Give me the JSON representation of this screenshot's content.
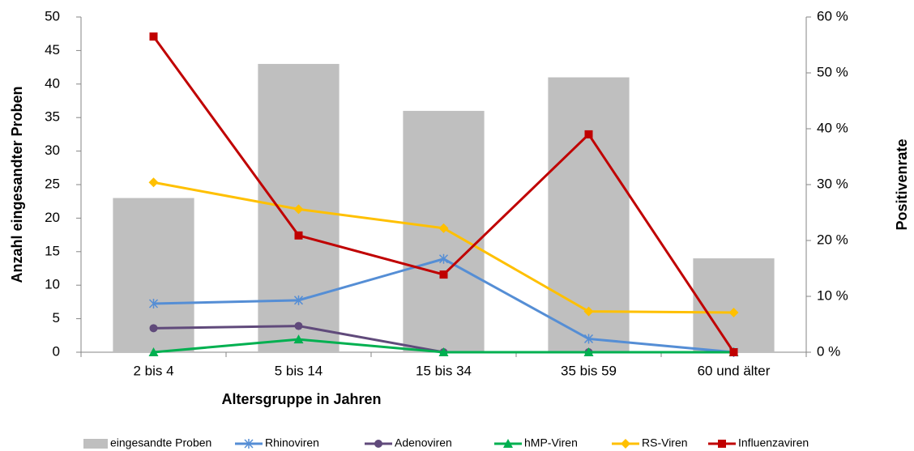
{
  "chart_data": {
    "type": "combo",
    "x_label": "Altersgruppe in Jahren",
    "y_label": "Anzahl eingesandter Proben",
    "y2_label": "Positivenrate",
    "categories": [
      "2 bis 4",
      "5 bis 14",
      "15 bis 34",
      "35 bis 59",
      "60 und älter"
    ],
    "ylim": [
      0,
      50
    ],
    "yticks": [
      0,
      5,
      10,
      15,
      20,
      25,
      30,
      35,
      40,
      45,
      50
    ],
    "y2lim": [
      0,
      60
    ],
    "y2ticks": [
      {
        "value": 0,
        "label": "0 %"
      },
      {
        "value": 10,
        "label": "10 %"
      },
      {
        "value": 20,
        "label": "20 %"
      },
      {
        "value": 30,
        "label": "30 %"
      },
      {
        "value": 40,
        "label": "40 %"
      },
      {
        "value": 50,
        "label": "50 %"
      },
      {
        "value": 60,
        "label": "60 %"
      }
    ],
    "legend": "bottom",
    "series": [
      {
        "name": "eingesandte Proben",
        "kind": "bar",
        "color": "#bfbfbf",
        "values": [
          23,
          43,
          36,
          41,
          14
        ]
      },
      {
        "name": "Rhinoviren",
        "kind": "line",
        "marker": "asterisk",
        "axis": "y2",
        "color": "#558ed5",
        "values": [
          8.7,
          9.3,
          16.7,
          2.4,
          0
        ]
      },
      {
        "name": "Adenoviren",
        "kind": "line",
        "marker": "circle",
        "axis": "y2",
        "color": "#604a7b",
        "values": [
          4.3,
          4.7,
          0,
          0,
          0
        ]
      },
      {
        "name": "hMP-Viren",
        "kind": "line",
        "marker": "triangle",
        "axis": "y2",
        "color": "#00b050",
        "values": [
          0,
          2.3,
          0,
          0,
          0
        ]
      },
      {
        "name": "RS-Viren",
        "kind": "line",
        "marker": "diamond",
        "axis": "y2",
        "color": "#ffc000",
        "values": [
          30.4,
          25.6,
          22.2,
          7.3,
          7.1
        ]
      },
      {
        "name": "Influenzaviren",
        "kind": "line",
        "marker": "square",
        "axis": "y2",
        "color": "#c00000",
        "values": [
          56.5,
          20.9,
          13.9,
          39.0,
          0
        ]
      }
    ]
  }
}
